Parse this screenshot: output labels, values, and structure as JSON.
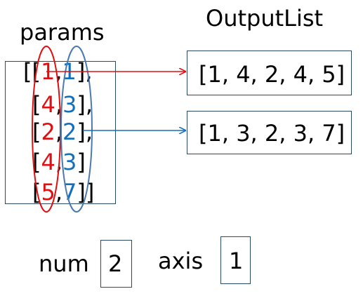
{
  "params_label": "params",
  "output_label": "OutputList",
  "matrix_rows": [
    {
      "open": "[[",
      "a": "1",
      "sep": ",",
      "b": "1",
      "close": "],"
    },
    {
      "open": "[",
      "a": "4",
      "sep": ",",
      "b": "3",
      "close": "],"
    },
    {
      "open": "[",
      "a": "2",
      "sep": ",",
      "b": "2",
      "close": "],"
    },
    {
      "open": "[",
      "a": "4",
      "sep": ",",
      "b": "3",
      "close": "]"
    },
    {
      "open": "[",
      "a": "5",
      "sep": ",",
      "b": "7",
      "close": "]]"
    }
  ],
  "outputs": [
    {
      "text": "[1, 4, 2, 4, 5]"
    },
    {
      "text": "[1, 3, 2, 3, 7]"
    }
  ],
  "num": {
    "label": "num",
    "value": "2"
  },
  "axis": {
    "label": "axis",
    "value": "1"
  },
  "colors": {
    "col0": "#e01010",
    "col1": "#1070c0",
    "box": "#2a4a63"
  }
}
